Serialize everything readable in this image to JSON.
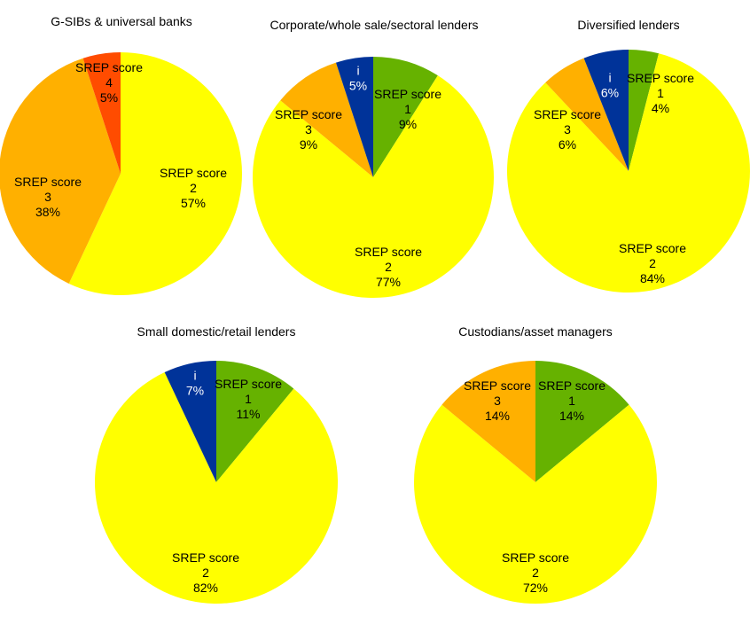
{
  "colors": {
    "1": "#66B200",
    "2": "#FFFF00",
    "3": "#FFB000",
    "4": "#FF4C00",
    "i": "#003399"
  },
  "chart_data": [
    {
      "type": "pie",
      "title": "G-SIBs & universal banks",
      "slices": [
        {
          "key": "2",
          "label": "SREP score",
          "sub": "2",
          "value": 57
        },
        {
          "key": "3",
          "label": "SREP score",
          "sub": "3",
          "value": 38
        },
        {
          "key": "4",
          "label": "SREP score",
          "sub": "4",
          "value": 5
        }
      ]
    },
    {
      "type": "pie",
      "title": "Corporate/whole sale/sectoral lenders",
      "slices": [
        {
          "key": "1",
          "label": "SREP score",
          "sub": "1",
          "value": 9
        },
        {
          "key": "2",
          "label": "SREP score",
          "sub": "2",
          "value": 77
        },
        {
          "key": "3",
          "label": "SREP score",
          "sub": "3",
          "value": 9
        },
        {
          "key": "i",
          "label": "i",
          "sub": "",
          "value": 5
        }
      ]
    },
    {
      "type": "pie",
      "title": "Diversified lenders",
      "slices": [
        {
          "key": "1",
          "label": "SREP score",
          "sub": "1",
          "value": 4
        },
        {
          "key": "2",
          "label": "SREP score",
          "sub": "2",
          "value": 84
        },
        {
          "key": "3",
          "label": "SREP score",
          "sub": "3",
          "value": 6
        },
        {
          "key": "i",
          "label": "i",
          "sub": "",
          "value": 6
        }
      ]
    },
    {
      "type": "pie",
      "title": "Small domestic/retail lenders",
      "slices": [
        {
          "key": "1",
          "label": "SREP score",
          "sub": "1",
          "value": 11
        },
        {
          "key": "2",
          "label": "SREP score",
          "sub": "2",
          "value": 82
        },
        {
          "key": "i",
          "label": "i",
          "sub": "",
          "value": 7
        }
      ]
    },
    {
      "type": "pie",
      "title": "Custodians/asset managers",
      "slices": [
        {
          "key": "1",
          "label": "SREP score",
          "sub": "1",
          "value": 14
        },
        {
          "key": "2",
          "label": "SREP score",
          "sub": "2",
          "value": 72
        },
        {
          "key": "3",
          "label": "SREP score",
          "sub": "3",
          "value": 14
        }
      ]
    }
  ]
}
